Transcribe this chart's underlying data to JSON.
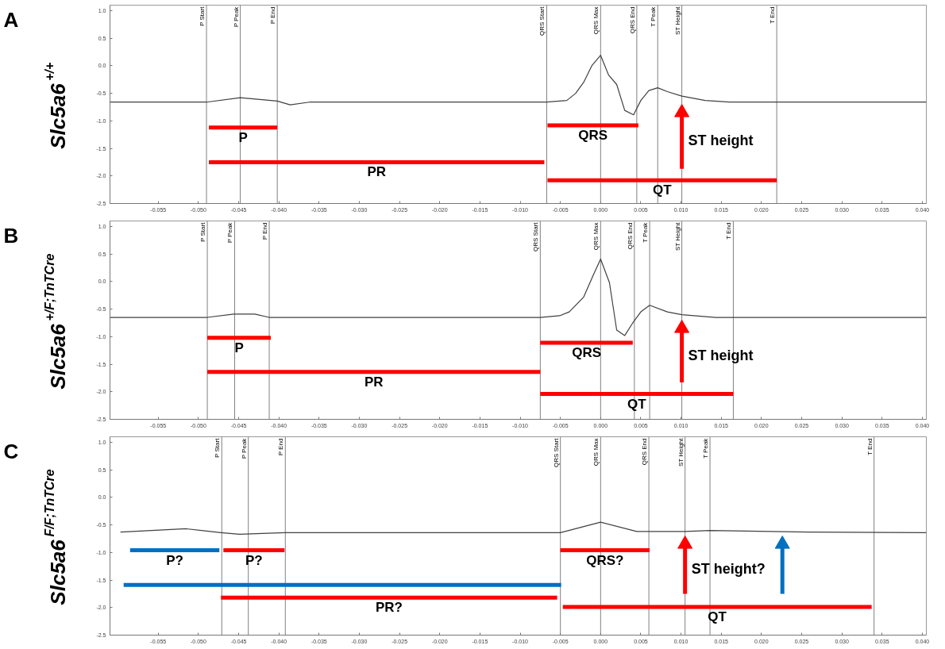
{
  "chart_data": [
    {
      "type": "line",
      "title": "A",
      "ylabel": "Slc5a6$^{+/+}$",
      "xlim": [
        -0.061,
        0.0405
      ],
      "ylim": [
        -2.5,
        1.1
      ],
      "xticks": [
        {
          "value": -0.055,
          "label": "-0.055"
        },
        {
          "value": -0.05,
          "label": "-0.050"
        },
        {
          "value": -0.045,
          "label": "-0.045"
        },
        {
          "value": -0.04,
          "label": "-0.040"
        },
        {
          "value": -0.035,
          "label": "-0.035"
        },
        {
          "value": -0.03,
          "label": "-0.030"
        },
        {
          "value": -0.025,
          "label": "-0.025"
        },
        {
          "value": -0.02,
          "label": "-0.020"
        },
        {
          "value": -0.015,
          "label": "-0.015"
        },
        {
          "value": -0.01,
          "label": "-0.010"
        },
        {
          "value": -0.005,
          "label": "-0.005"
        },
        {
          "value": 0,
          "label": "0.000"
        },
        {
          "value": 0.005,
          "label": "0.005"
        },
        {
          "value": 0.01,
          "label": "0.010"
        },
        {
          "value": 0.015,
          "label": "0.015"
        },
        {
          "value": 0.02,
          "label": "0.020"
        },
        {
          "value": 0.025,
          "label": "0.025"
        },
        {
          "value": 0.03,
          "label": "0.030"
        },
        {
          "value": 0.035,
          "label": "0.035"
        },
        {
          "value": 0.04,
          "label": "0.040"
        }
      ],
      "yticks": [
        {
          "value": 1,
          "label": "1.0"
        },
        {
          "value": 0.5,
          "label": "0.5"
        },
        {
          "value": 0,
          "label": "0.0"
        },
        {
          "value": -0.5,
          "label": "-0.5"
        },
        {
          "value": -1,
          "label": "-1.0"
        },
        {
          "value": -1.5,
          "label": "-1.5"
        },
        {
          "value": -2,
          "label": "-2.0"
        },
        {
          "value": -2.5,
          "label": "-2.5"
        }
      ],
      "series": [
        {
          "type": "line",
          "color": "#404040",
          "x": [
            -0.061,
            -0.049,
            -0.0448,
            -0.0402,
            -0.0386,
            -0.0362,
            -0.0067,
            -0.0042,
            -0.0031,
            -0.0021,
            -0.0011,
            0,
            0.001,
            0.002,
            0.003,
            0.0041,
            0.005,
            0.006,
            0.0071,
            0.0083,
            0.0101,
            0.013,
            0.016,
            0.0405
          ],
          "values": [
            -0.66,
            -0.66,
            -0.58,
            -0.64,
            -0.71,
            -0.66,
            -0.66,
            -0.63,
            -0.5,
            -0.3,
            0.0,
            0.19,
            -0.17,
            -0.34,
            -0.81,
            -0.89,
            -0.63,
            -0.45,
            -0.4,
            -0.47,
            -0.55,
            -0.63,
            -0.66,
            -0.66
          ]
        },
        {
          "type": "line",
          "name": "P",
          "color": "#ff0000",
          "x": [
            -0.0487,
            -0.0402
          ],
          "values": [
            -1.12,
            -1.12
          ]
        },
        {
          "type": "line",
          "name": "PR",
          "color": "#ff0000",
          "x": [
            -0.0487,
            -0.007
          ],
          "values": [
            -1.75,
            -1.75
          ]
        },
        {
          "type": "line",
          "name": "QRS",
          "color": "#ff0000",
          "x": [
            -0.0066,
            0.0047
          ],
          "values": [
            -1.08,
            -1.08
          ]
        },
        {
          "type": "line",
          "name": "QT",
          "color": "#ff0000",
          "x": [
            -0.0066,
            0.0219
          ],
          "values": [
            -2.08,
            -2.08
          ]
        },
        {
          "marker": "triangle",
          "color": "#ff0000",
          "x": [
            0.0101,
            0.0101
          ],
          "values": [
            -1.87,
            -0.85
          ]
        }
      ],
      "ref_lines": [
        {
          "axis": "x",
          "value": -0.049,
          "label": "P Start"
        },
        {
          "axis": "x",
          "value": -0.0448,
          "label": "P Peak"
        },
        {
          "axis": "x",
          "value": -0.0402,
          "label": "P End"
        },
        {
          "axis": "x",
          "value": -0.0067,
          "label": "QRS Start"
        },
        {
          "axis": "x",
          "value": 0,
          "label": "QRS Max"
        },
        {
          "axis": "x",
          "value": 0.0045,
          "label": "QRS End"
        },
        {
          "axis": "x",
          "value": 0.0071,
          "label": "T Peak"
        },
        {
          "axis": "x",
          "value": 0.0101,
          "label": "ST Height"
        },
        {
          "axis": "x",
          "value": 0.0219,
          "label": "T End"
        }
      ],
      "annotations": [
        "ST height"
      ]
    },
    {
      "type": "line",
      "title": "B",
      "ylabel": "Slc5a6$^{+/F;TnTCre}$",
      "xlim": [
        -0.061,
        0.0405
      ],
      "ylim": [
        -2.5,
        1.1
      ],
      "xticks": [
        {
          "value": -0.055,
          "label": "-0.055"
        },
        {
          "value": -0.05,
          "label": "-0.050"
        },
        {
          "value": -0.045,
          "label": "-0.045"
        },
        {
          "value": -0.04,
          "label": "-0.040"
        },
        {
          "value": -0.035,
          "label": "-0.035"
        },
        {
          "value": -0.03,
          "label": "-0.030"
        },
        {
          "value": -0.025,
          "label": "-0.025"
        },
        {
          "value": -0.02,
          "label": "-0.020"
        },
        {
          "value": -0.015,
          "label": "-0.015"
        },
        {
          "value": -0.01,
          "label": "-0.010"
        },
        {
          "value": -0.005,
          "label": "-0.005"
        },
        {
          "value": 0,
          "label": "0.000"
        },
        {
          "value": 0.005,
          "label": "0.005"
        },
        {
          "value": 0.01,
          "label": "0.010"
        },
        {
          "value": 0.015,
          "label": "0.015"
        },
        {
          "value": 0.02,
          "label": "0.020"
        },
        {
          "value": 0.025,
          "label": "0.025"
        },
        {
          "value": 0.03,
          "label": "0.030"
        },
        {
          "value": 0.035,
          "label": "0.035"
        },
        {
          "value": 0.04,
          "label": "0.040"
        }
      ],
      "yticks": [
        {
          "value": 1,
          "label": "1.0"
        },
        {
          "value": 0.5,
          "label": "0.5"
        },
        {
          "value": 0,
          "label": "0.0"
        },
        {
          "value": -0.5,
          "label": "-0.5"
        },
        {
          "value": -1,
          "label": "-1.0"
        },
        {
          "value": -1.5,
          "label": "-1.5"
        },
        {
          "value": -2,
          "label": "-2.0"
        },
        {
          "value": -2.5,
          "label": "-2.5"
        }
      ],
      "series": [
        {
          "type": "line",
          "color": "#404040",
          "x": [
            -0.061,
            -0.0489,
            -0.0456,
            -0.043,
            -0.0412,
            -0.0075,
            -0.0051,
            -0.0039,
            -0.0021,
            -0.0009,
            0,
            0.0011,
            0.002,
            0.003,
            0.004,
            0.005,
            0.0061,
            0.0083,
            0.0101,
            0.0143,
            0.0405
          ],
          "values": [
            -0.65,
            -0.65,
            -0.59,
            -0.59,
            -0.65,
            -0.65,
            -0.62,
            -0.55,
            -0.28,
            0.12,
            0.41,
            -0.02,
            -0.88,
            -0.98,
            -0.75,
            -0.55,
            -0.43,
            -0.55,
            -0.6,
            -0.65,
            -0.65
          ]
        },
        {
          "type": "line",
          "name": "P",
          "color": "#ff0000",
          "x": [
            -0.0489,
            -0.041
          ],
          "values": [
            -1.02,
            -1.02
          ]
        },
        {
          "type": "line",
          "name": "PR",
          "color": "#ff0000",
          "x": [
            -0.0489,
            -0.0075
          ],
          "values": [
            -1.64,
            -1.64
          ]
        },
        {
          "type": "line",
          "name": "QRS",
          "color": "#ff0000",
          "x": [
            -0.0075,
            0.004
          ],
          "values": [
            -1.11,
            -1.11
          ]
        },
        {
          "type": "line",
          "name": "QT",
          "color": "#ff0000",
          "x": [
            -0.0075,
            0.0165
          ],
          "values": [
            -2.04,
            -2.04
          ]
        },
        {
          "marker": "triangle",
          "color": "#ff0000",
          "x": [
            0.0101,
            0.0101
          ],
          "values": [
            -1.83,
            -0.85
          ]
        }
      ],
      "ref_lines": [
        {
          "axis": "x",
          "value": -0.0489,
          "label": "P Start"
        },
        {
          "axis": "x",
          "value": -0.0455,
          "label": "P Peak"
        },
        {
          "axis": "x",
          "value": -0.0412,
          "label": "P End"
        },
        {
          "axis": "x",
          "value": -0.0075,
          "label": "QRS Start"
        },
        {
          "axis": "x",
          "value": 0,
          "label": "QRS Max"
        },
        {
          "axis": "x",
          "value": 0.0042,
          "label": "QRS End"
        },
        {
          "axis": "x",
          "value": 0.0061,
          "label": "T Peak"
        },
        {
          "axis": "x",
          "value": 0.0101,
          "label": "ST Height"
        },
        {
          "axis": "x",
          "value": 0.0165,
          "label": "T End"
        }
      ],
      "annotations": [
        "ST height"
      ]
    },
    {
      "type": "line",
      "title": "C",
      "ylabel": "Slc5a6$^{F/F;TnTCre}$",
      "xlim": [
        -0.061,
        0.0405
      ],
      "ylim": [
        -2.5,
        1.1
      ],
      "xticks": [
        {
          "value": -0.055,
          "label": "-0.055"
        },
        {
          "value": -0.05,
          "label": "-0.050"
        },
        {
          "value": -0.045,
          "label": "-0.045"
        },
        {
          "value": -0.04,
          "label": "-0.040"
        },
        {
          "value": -0.035,
          "label": "-0.035"
        },
        {
          "value": -0.03,
          "label": "-0.030"
        },
        {
          "value": -0.025,
          "label": "-0.025"
        },
        {
          "value": -0.02,
          "label": "-0.020"
        },
        {
          "value": -0.015,
          "label": "-0.015"
        },
        {
          "value": -0.01,
          "label": "-0.010"
        },
        {
          "value": -0.005,
          "label": "-0.005"
        },
        {
          "value": 0,
          "label": "0.000"
        },
        {
          "value": 0.005,
          "label": "0.005"
        },
        {
          "value": 0.01,
          "label": "0.010"
        },
        {
          "value": 0.015,
          "label": "0.015"
        },
        {
          "value": 0.02,
          "label": "0.020"
        },
        {
          "value": 0.025,
          "label": "0.025"
        },
        {
          "value": 0.03,
          "label": "0.030"
        },
        {
          "value": 0.035,
          "label": "0.035"
        },
        {
          "value": 0.04,
          "label": "0.040"
        }
      ],
      "yticks": [
        {
          "value": 1,
          "label": "1.0"
        },
        {
          "value": 0.5,
          "label": "0.5"
        },
        {
          "value": 0,
          "label": "0.0"
        },
        {
          "value": -0.5,
          "label": "-0.5"
        },
        {
          "value": -1,
          "label": "-1.0"
        },
        {
          "value": -1.5,
          "label": "-1.5"
        },
        {
          "value": -2,
          "label": "-2.0"
        },
        {
          "value": -2.5,
          "label": "-2.5"
        }
      ],
      "series": [
        {
          "type": "line",
          "color": "#404040",
          "x": [
            -0.0597,
            -0.0515,
            -0.0472,
            -0.0449,
            -0.0393,
            -0.005,
            0,
            0.0045,
            0.0105,
            0.0136,
            0.0263,
            0.0405
          ],
          "values": [
            -0.63,
            -0.57,
            -0.64,
            -0.67,
            -0.64,
            -0.64,
            -0.45,
            -0.62,
            -0.62,
            -0.6,
            -0.63,
            -0.64
          ]
        },
        {
          "type": "line",
          "name": "P?",
          "color": "#0070c0",
          "x": [
            -0.0585,
            -0.0474
          ],
          "values": [
            -0.96,
            -0.96
          ]
        },
        {
          "type": "line",
          "name": "P?",
          "color": "#ff0000",
          "x": [
            -0.0469,
            -0.0393
          ],
          "values": [
            -0.96,
            -0.96
          ]
        },
        {
          "type": "line",
          "color": "#0070c0",
          "x": [
            -0.0593,
            -0.0049
          ],
          "values": [
            -1.59,
            -1.59
          ]
        },
        {
          "type": "line",
          "name": "PR?",
          "color": "#ff0000",
          "x": [
            -0.0472,
            -0.0054
          ],
          "values": [
            -1.82,
            -1.82
          ]
        },
        {
          "type": "line",
          "name": "QRS?",
          "color": "#ff0000",
          "x": [
            -0.005,
            0.0061
          ],
          "values": [
            -0.96,
            -0.96
          ]
        },
        {
          "type": "line",
          "name": "QT",
          "color": "#ff0000",
          "x": [
            -0.0047,
            0.0337
          ],
          "values": [
            -1.99,
            -1.99
          ]
        },
        {
          "marker": "triangle",
          "color": "#ff0000",
          "x": [
            0.0105,
            0.0105
          ],
          "values": [
            -1.75,
            -0.85
          ]
        },
        {
          "marker": "triangle",
          "color": "#0070c0",
          "x": [
            0.0226,
            0.0226
          ],
          "values": [
            -1.75,
            -0.85
          ]
        }
      ],
      "ref_lines": [
        {
          "axis": "x",
          "value": -0.0471,
          "label": "P Start"
        },
        {
          "axis": "x",
          "value": -0.0438,
          "label": "P Peak"
        },
        {
          "axis": "x",
          "value": -0.0392,
          "label": "P End"
        },
        {
          "axis": "x",
          "value": -0.005,
          "label": "QRS Start"
        },
        {
          "axis": "x",
          "value": 0,
          "label": "QRS Max"
        },
        {
          "axis": "x",
          "value": 0.006,
          "label": "QRS End"
        },
        {
          "axis": "x",
          "value": 0.0105,
          "label": "ST Height"
        },
        {
          "axis": "x",
          "value": 0.0136,
          "label": "T Peak"
        },
        {
          "axis": "x",
          "value": 0.034,
          "label": "T End"
        }
      ],
      "annotations": [
        "ST height?"
      ]
    }
  ]
}
